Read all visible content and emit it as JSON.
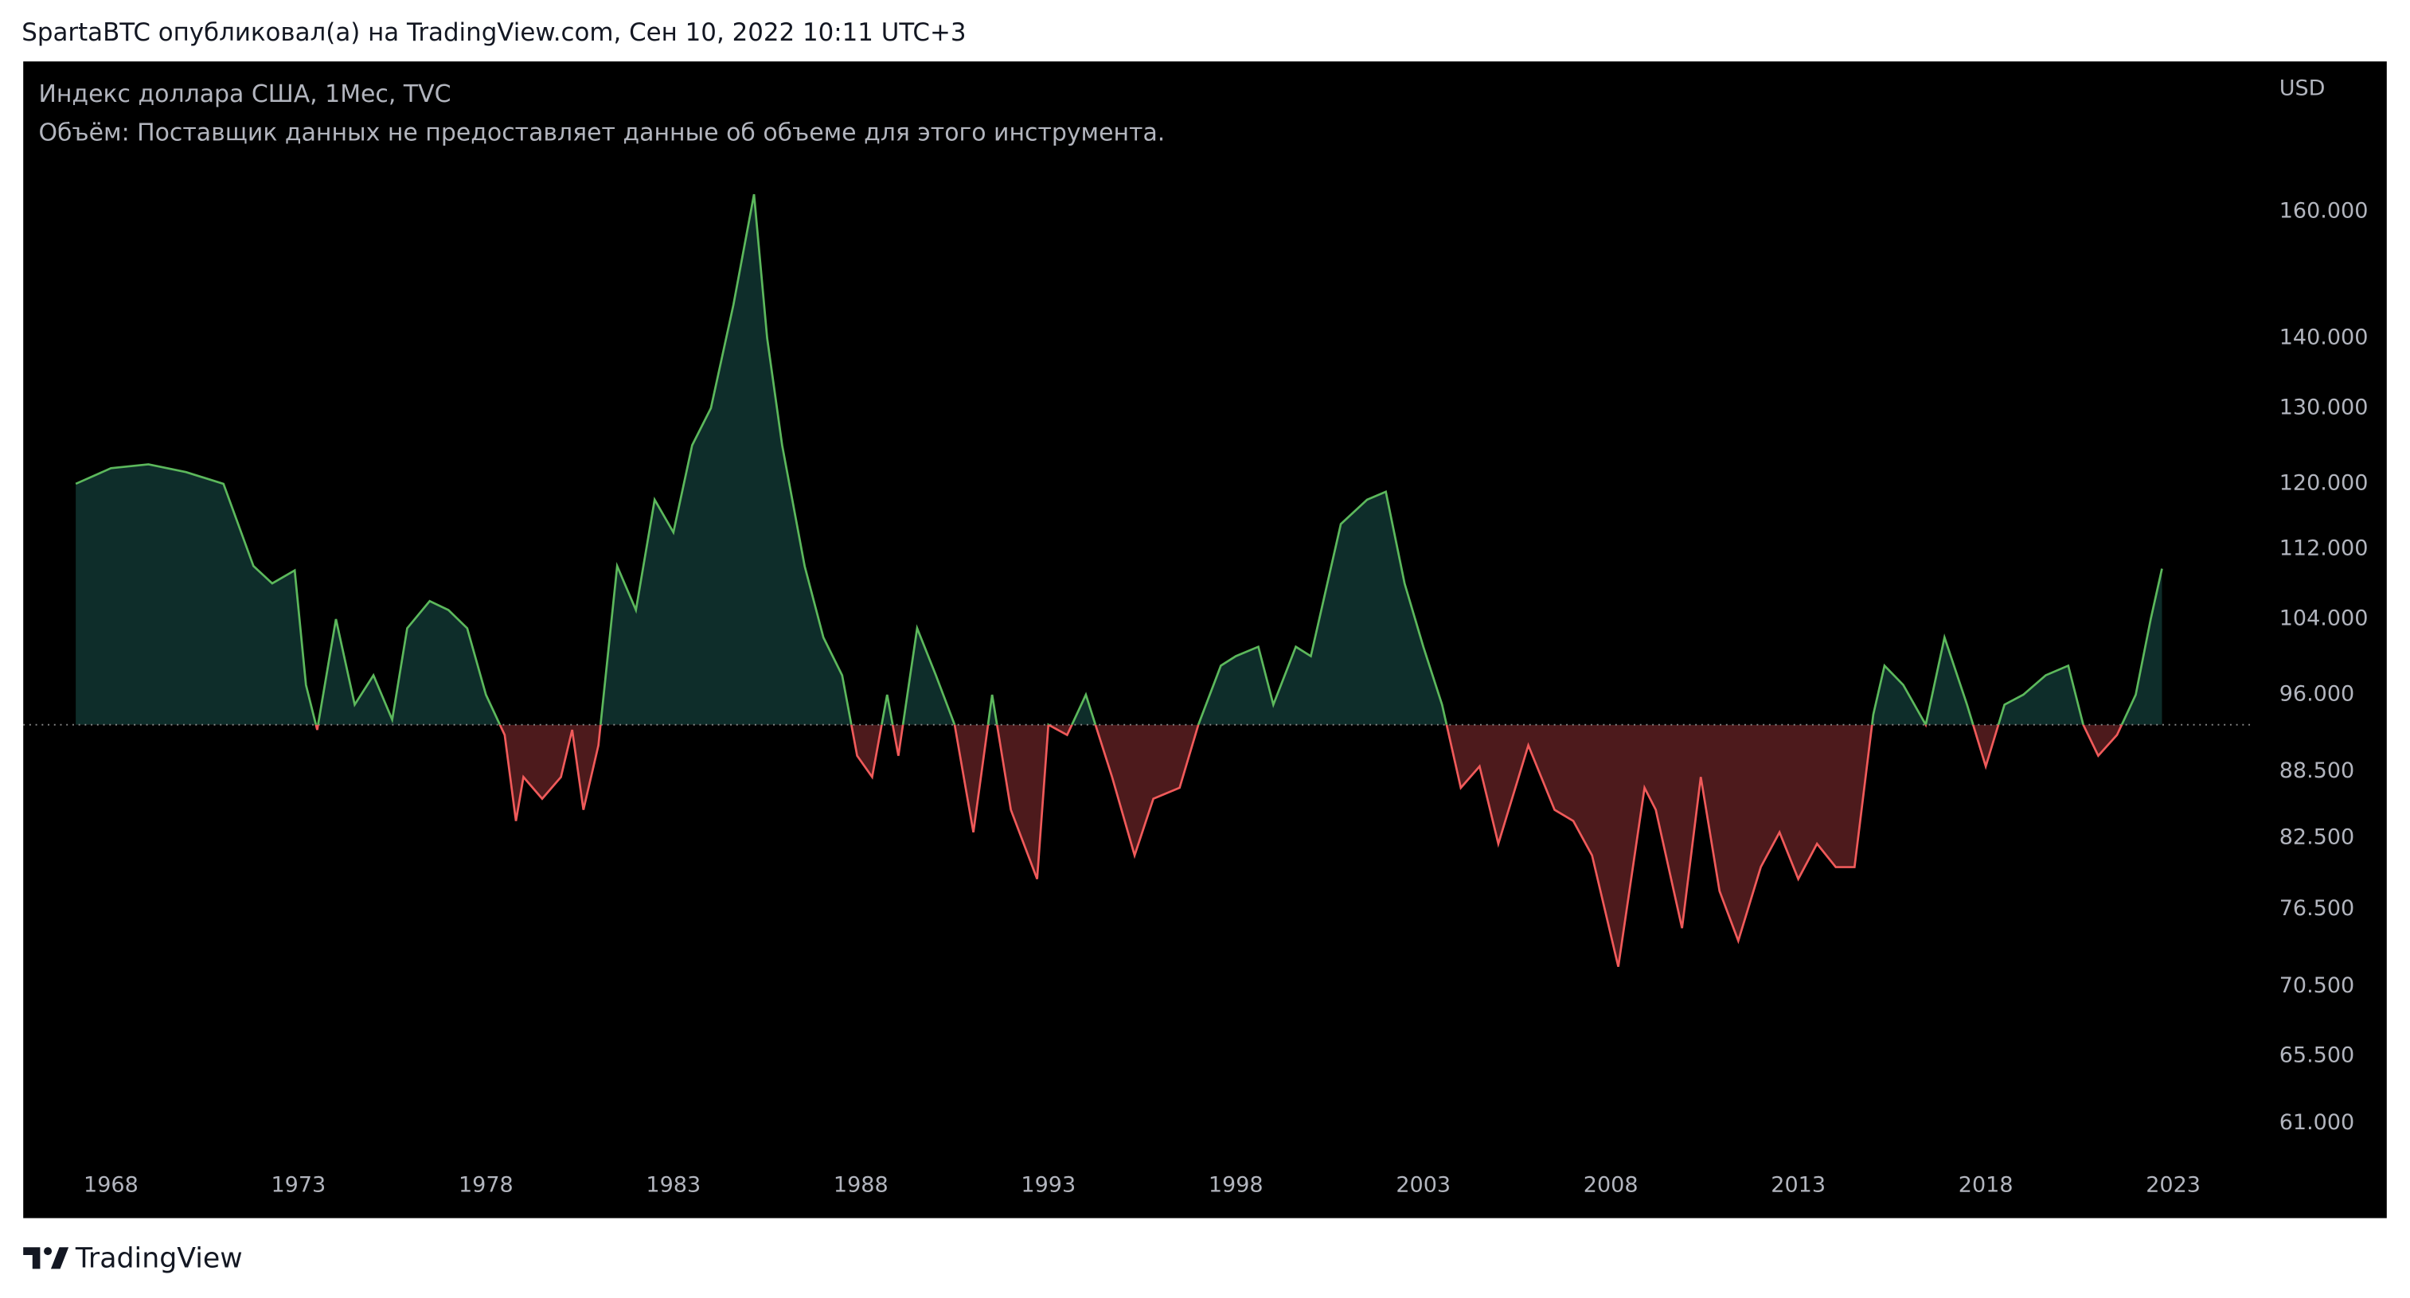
{
  "header": "SpartaBTC опубликовал(а) на TradingView.com, Сен 10, 2022 10:11 UTC+3",
  "footer": "TradingView",
  "chart_data": {
    "type": "baseline",
    "title": "Индекс доллара США, 1Мес, TVC",
    "subtitle": "Объём: Поставщик данных не предоставляет данные об объеме для этого инструмента.",
    "currency": "USD",
    "log_scale": true,
    "baseline": 93,
    "up_color": "#5cb85c",
    "down_color": "#f05a5a",
    "up_fill": "#0e2d2a",
    "down_fill": "#4d1a1c",
    "xlim": [
      1965.66,
      2025.17
    ],
    "xticks": [
      1968,
      1973,
      1978,
      1983,
      1988,
      1993,
      1998,
      2003,
      2008,
      2013,
      2018,
      2023
    ],
    "ylim": [
      58.7,
      187.6
    ],
    "yticks": [
      {
        "value": 160,
        "label": "160.000"
      },
      {
        "value": 140,
        "label": "140.000"
      },
      {
        "value": 130,
        "label": "130.000"
      },
      {
        "value": 120,
        "label": "120.000"
      },
      {
        "value": 112,
        "label": "112.000"
      },
      {
        "value": 104,
        "label": "104.000"
      },
      {
        "value": 96,
        "label": "96.000"
      },
      {
        "value": 88.5,
        "label": "88.500"
      },
      {
        "value": 82.5,
        "label": "82.500"
      },
      {
        "value": 76.5,
        "label": "76.500"
      },
      {
        "value": 70.5,
        "label": "70.500"
      },
      {
        "value": 65.5,
        "label": "65.500"
      },
      {
        "value": 61,
        "label": "61.000"
      }
    ],
    "x": [
      1967.06,
      1968,
      1969,
      1970,
      1971,
      1971.8,
      1972.3,
      1972.9,
      1973.2,
      1973.5,
      1974.0,
      1974.5,
      1975.0,
      1975.5,
      1975.9,
      1976.5,
      1977.0,
      1977.5,
      1978.0,
      1978.5,
      1978.8,
      1979.0,
      1979.5,
      1980.0,
      1980.3,
      1980.6,
      1981.0,
      1981.5,
      1982.0,
      1982.5,
      1983.0,
      1983.5,
      1984.0,
      1984.6,
      1985.15,
      1985.5,
      1985.9,
      1986.5,
      1987.0,
      1987.5,
      1987.9,
      1988.3,
      1988.7,
      1989.0,
      1989.5,
      1990.0,
      1990.5,
      1991.0,
      1991.5,
      1992.0,
      1992.7,
      1993.0,
      1993.5,
      1994.0,
      1994.7,
      1995.3,
      1995.8,
      1996.5,
      1997.0,
      1997.6,
      1998.0,
      1998.6,
      1999.0,
      1999.6,
      2000.0,
      2000.8,
      2001.5,
      2002.0,
      2002.5,
      2003.0,
      2003.5,
      2004.0,
      2004.5,
      2005.0,
      2005.8,
      2006.5,
      2007.0,
      2007.5,
      2008.2,
      2008.9,
      2009.2,
      2009.9,
      2010.4,
      2010.9,
      2011.4,
      2012.0,
      2012.5,
      2013.0,
      2013.5,
      2014.0,
      2014.5,
      2015.0,
      2015.3,
      2015.8,
      2016.4,
      2016.9,
      2017.5,
      2018.0,
      2018.5,
      2019.0,
      2019.6,
      2020.2,
      2020.6,
      2021.0,
      2021.5,
      2022.0,
      2022.4,
      2022.7
    ],
    "values": [
      120,
      122,
      122.5,
      121.5,
      120,
      110,
      108,
      109.5,
      97,
      92.5,
      104,
      95,
      98,
      93.5,
      103,
      106,
      105,
      103,
      96,
      92,
      84,
      88,
      86,
      88,
      92.5,
      85,
      91,
      110,
      105,
      118,
      114,
      125,
      130,
      145,
      163,
      140,
      125,
      110,
      102,
      98,
      90,
      88,
      96,
      90,
      103,
      98,
      93,
      83,
      96,
      85,
      79,
      93,
      92,
      96,
      88,
      81,
      86,
      87,
      93,
      99,
      100,
      101,
      95,
      101,
      100,
      115,
      118,
      119,
      108,
      101,
      95,
      87,
      89,
      82,
      91,
      85,
      84,
      81,
      72,
      87,
      85,
      75,
      88,
      78,
      74,
      80,
      83,
      79,
      82,
      80,
      80,
      94,
      99,
      97,
      93,
      102,
      95,
      89,
      95,
      96,
      98,
      99,
      93,
      90,
      92,
      96,
      104,
      109.7
    ]
  }
}
